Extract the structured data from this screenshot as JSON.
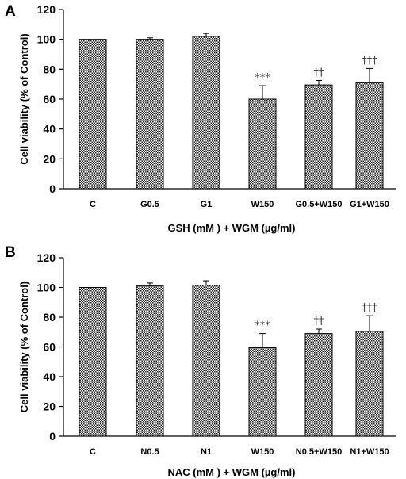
{
  "chart_data": [
    {
      "panel": "A",
      "type": "bar",
      "categories": [
        "C",
        "G0.5",
        "G1",
        "W150",
        "G0.5+W150",
        "G1+W150"
      ],
      "series": [
        {
          "values": [
            100,
            100,
            102,
            60,
            69.5,
            71
          ],
          "errors": [
            0,
            1,
            2,
            9,
            3,
            9.5
          ]
        }
      ],
      "annotations": [
        "",
        "",
        "",
        "***",
        "††",
        "†††"
      ],
      "ylabel": "Cell viability  (% of Control)",
      "xlabel": "GSH  (mM )  + WGM (µg/ml)",
      "ylim": [
        0,
        120
      ],
      "yticks": [
        0,
        20,
        40,
        60,
        80,
        100,
        120
      ],
      "grid": false,
      "fill": "checkered",
      "bar_color": "#000000"
    },
    {
      "panel": "B",
      "type": "bar",
      "categories": [
        "C",
        "N0.5",
        "N1",
        "W150",
        "N0.5+W150",
        "N1+W150"
      ],
      "series": [
        {
          "values": [
            100,
            101,
            101.5,
            59.5,
            69,
            70.5
          ],
          "errors": [
            0,
            2,
            3,
            9.5,
            3,
            10.5
          ]
        }
      ],
      "annotations": [
        "",
        "",
        "",
        "***",
        "††",
        "†††"
      ],
      "ylabel": "Cell viability  (% of Control)",
      "xlabel": "NAC  (mM )  + WGM (µg/ml)",
      "ylim": [
        0,
        120
      ],
      "yticks": [
        0,
        20,
        40,
        60,
        80,
        100,
        120
      ],
      "grid": false,
      "fill": "checkered",
      "bar_color": "#000000"
    }
  ]
}
